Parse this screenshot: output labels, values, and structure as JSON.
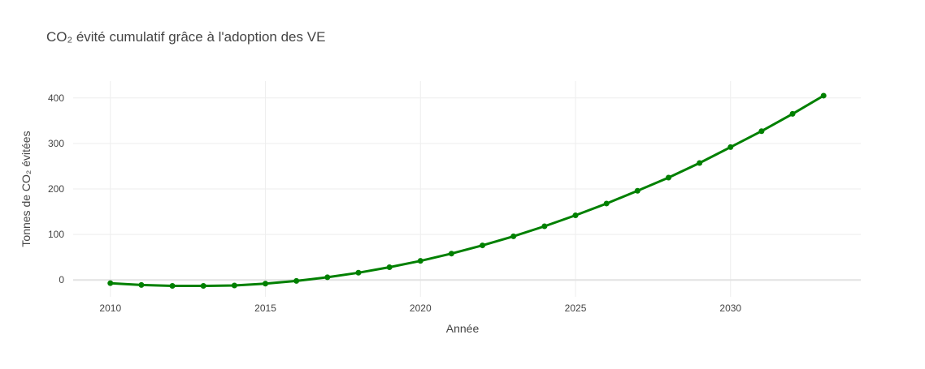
{
  "chart_data": {
    "type": "line",
    "title": "CO₂ évité cumulatif grâce à l'adoption des VE",
    "xlabel": "Année",
    "ylabel": "Tonnes de CO₂ évitées",
    "xlim": [
      2008.8,
      2034.2
    ],
    "ylim": [
      -37,
      437
    ],
    "x_ticks": [
      2010,
      2015,
      2020,
      2025,
      2030
    ],
    "y_ticks": [
      0,
      100,
      200,
      300,
      400
    ],
    "grid": true,
    "series": [
      {
        "name": "CO₂ évité",
        "color": "#008000",
        "x": [
          2010,
          2011,
          2012,
          2013,
          2014,
          2015,
          2016,
          2017,
          2018,
          2019,
          2020,
          2021,
          2022,
          2023,
          2024,
          2025,
          2026,
          2027,
          2028,
          2029,
          2030,
          2031,
          2032,
          2033
        ],
        "y": [
          -7,
          -11,
          -13,
          -13,
          -12,
          -8,
          -2,
          6,
          16,
          28,
          42,
          58,
          76,
          96,
          118,
          142,
          168,
          196,
          225,
          257,
          292,
          327,
          365,
          405
        ]
      }
    ]
  }
}
